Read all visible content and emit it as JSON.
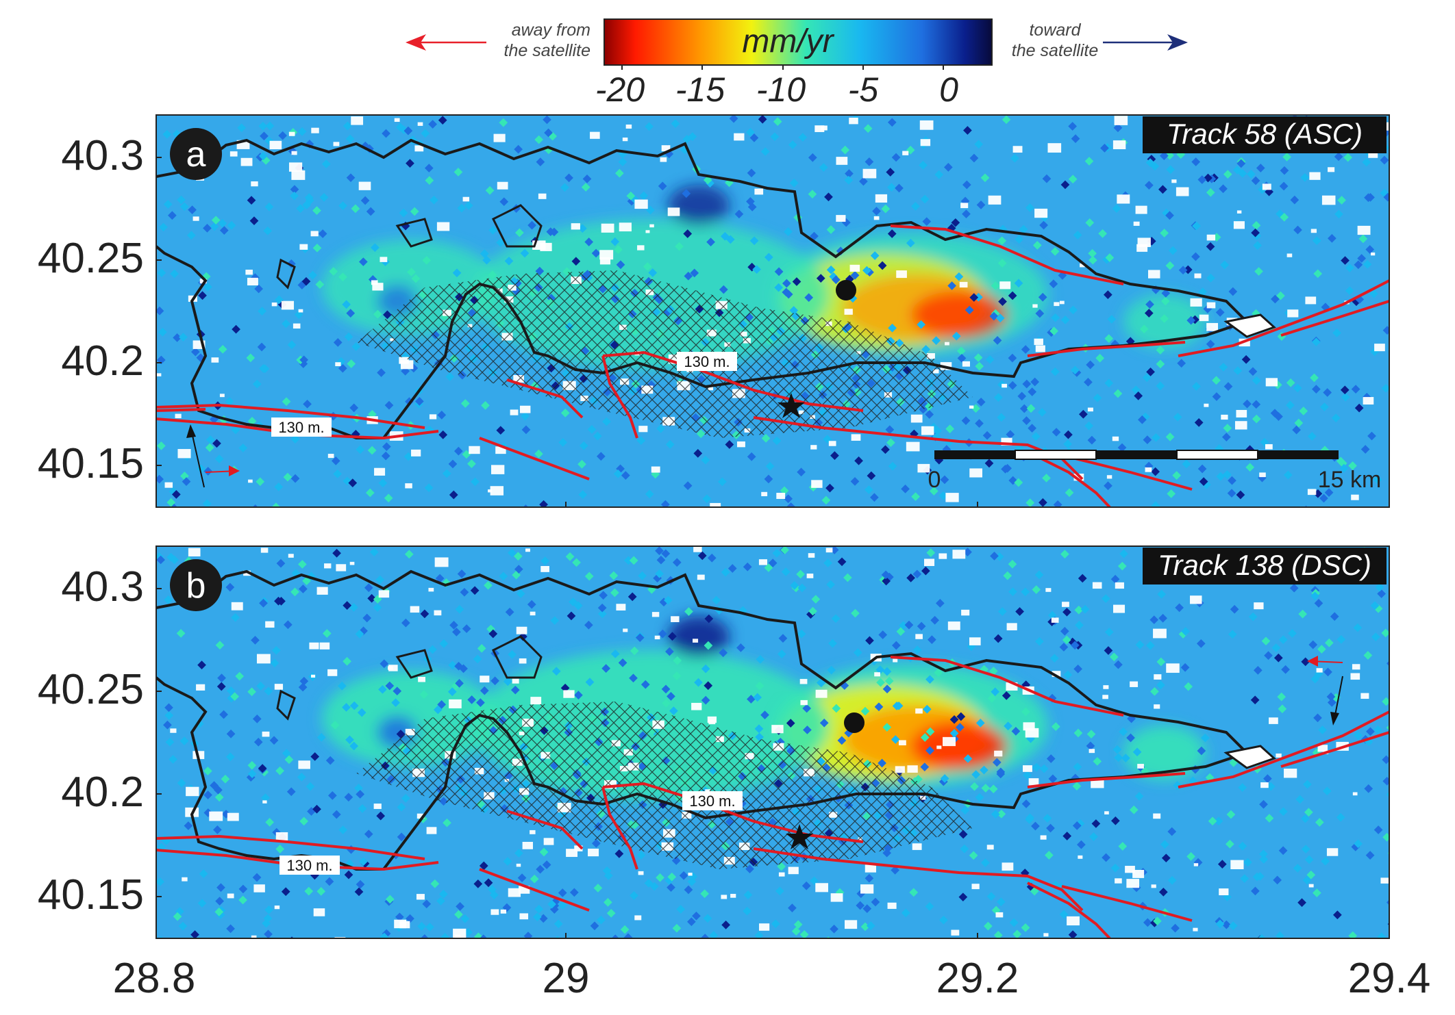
{
  "colorbar": {
    "unit": "mm/yr",
    "ticks": [
      "-20",
      "-15",
      "-10",
      "-5",
      "0"
    ],
    "range": [
      -22,
      2
    ],
    "colors": [
      "#8b0000",
      "#ff2a00",
      "#ff9900",
      "#f2f20f",
      "#35e6b5",
      "#19b8f0",
      "#1f6fe0",
      "#0a1f8c",
      "#080a3a"
    ]
  },
  "legend": {
    "away_line1": "away from",
    "away_line2": "the satellite",
    "toward_line1": "toward",
    "toward_line2": "the satellite",
    "away_color": "#e8202a",
    "toward_color": "#1e2f7a"
  },
  "x_ticks": [
    "28.8",
    "29",
    "29.2",
    "29.4"
  ],
  "x_values": [
    28.8,
    29.0,
    29.2,
    29.4
  ],
  "y_ticks": [
    "40.3",
    "40.25",
    "40.2",
    "40.15"
  ],
  "y_values": [
    40.3,
    40.25,
    40.2,
    40.15
  ],
  "map_extent": {
    "lon": [
      28.8,
      29.4
    ],
    "lat": [
      40.13,
      40.32
    ]
  },
  "panels": [
    {
      "label": "a",
      "track": "Track 58 (ASC)",
      "contour_labels": [
        "130 m.",
        "130 m."
      ],
      "scale_bar": {
        "start": "0",
        "end": "15 km"
      }
    },
    {
      "label": "b",
      "track": "Track 138 (DSC)",
      "contour_labels": [
        "130 m.",
        "130 m."
      ]
    }
  ],
  "styles": {
    "fault_color": "#e11b22",
    "contour_color": "#1a1a1a",
    "background": "#ffffff"
  }
}
